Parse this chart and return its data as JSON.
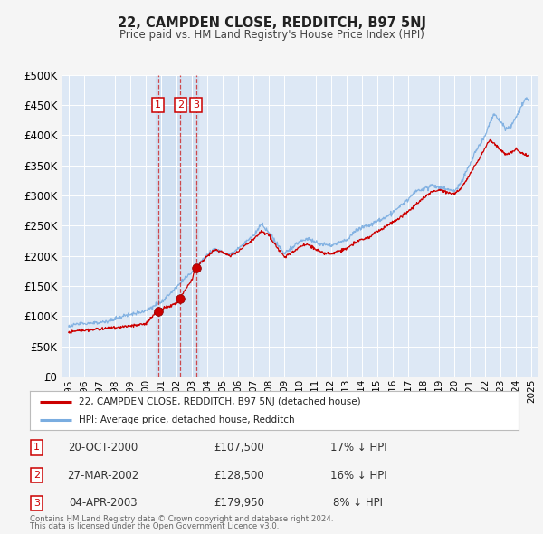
{
  "title": "22, CAMPDEN CLOSE, REDDITCH, B97 5NJ",
  "subtitle": "Price paid vs. HM Land Registry's House Price Index (HPI)",
  "legend_line1": "22, CAMPDEN CLOSE, REDDITCH, B97 5NJ (detached house)",
  "legend_line2": "HPI: Average price, detached house, Redditch",
  "footnote1": "Contains HM Land Registry data © Crown copyright and database right 2024.",
  "footnote2": "This data is licensed under the Open Government Licence v3.0.",
  "transactions": [
    {
      "num": 1,
      "date": "20-OCT-2000",
      "date_val": 2000.8,
      "price": 107500,
      "label": "17% ↓ HPI"
    },
    {
      "num": 2,
      "date": "27-MAR-2002",
      "date_val": 2002.24,
      "price": 128500,
      "label": "16% ↓ HPI"
    },
    {
      "num": 3,
      "date": "04-APR-2003",
      "date_val": 2003.26,
      "price": 179950,
      "label": "8% ↓ HPI"
    }
  ],
  "red_line_color": "#cc0000",
  "blue_line_color": "#7aade0",
  "dashed_line_color": "#cc2222",
  "fig_bg_color": "#f5f5f5",
  "plot_bg_color": "#dde8f5",
  "grid_color": "#ffffff",
  "highlight_bg_color": "#ccddf0",
  "ylim": [
    0,
    500000
  ],
  "yticks": [
    0,
    50000,
    100000,
    150000,
    200000,
    250000,
    300000,
    350000,
    400000,
    450000,
    500000
  ],
  "xlim_start": 1994.6,
  "xlim_end": 2025.4,
  "xticks": [
    1995,
    1996,
    1997,
    1998,
    1999,
    2000,
    2001,
    2002,
    2003,
    2004,
    2005,
    2006,
    2007,
    2008,
    2009,
    2010,
    2011,
    2012,
    2013,
    2014,
    2015,
    2016,
    2017,
    2018,
    2019,
    2020,
    2021,
    2022,
    2023,
    2024,
    2025
  ],
  "hpi_anchors": [
    [
      1995.0,
      83000
    ],
    [
      1996.0,
      87000
    ],
    [
      1997.0,
      90000
    ],
    [
      1998.0,
      95000
    ],
    [
      1999.0,
      103000
    ],
    [
      2000.0,
      110000
    ],
    [
      2001.0,
      123000
    ],
    [
      2002.0,
      148000
    ],
    [
      2003.0,
      175000
    ],
    [
      2004.0,
      205000
    ],
    [
      2004.5,
      215000
    ],
    [
      2005.0,
      208000
    ],
    [
      2005.5,
      205000
    ],
    [
      2006.0,
      215000
    ],
    [
      2007.0,
      235000
    ],
    [
      2007.5,
      255000
    ],
    [
      2008.5,
      220000
    ],
    [
      2009.0,
      205000
    ],
    [
      2009.5,
      215000
    ],
    [
      2010.0,
      225000
    ],
    [
      2010.5,
      230000
    ],
    [
      2011.0,
      225000
    ],
    [
      2011.5,
      220000
    ],
    [
      2012.0,
      218000
    ],
    [
      2013.0,
      228000
    ],
    [
      2013.5,
      240000
    ],
    [
      2014.0,
      248000
    ],
    [
      2014.5,
      252000
    ],
    [
      2015.0,
      258000
    ],
    [
      2016.0,
      272000
    ],
    [
      2017.0,
      295000
    ],
    [
      2017.5,
      308000
    ],
    [
      2018.0,
      312000
    ],
    [
      2018.5,
      318000
    ],
    [
      2019.0,
      315000
    ],
    [
      2019.5,
      312000
    ],
    [
      2020.0,
      308000
    ],
    [
      2020.5,
      325000
    ],
    [
      2021.0,
      352000
    ],
    [
      2021.5,
      378000
    ],
    [
      2022.0,
      400000
    ],
    [
      2022.3,
      420000
    ],
    [
      2022.6,
      435000
    ],
    [
      2022.9,
      425000
    ],
    [
      2023.3,
      410000
    ],
    [
      2023.7,
      415000
    ],
    [
      2024.0,
      430000
    ],
    [
      2024.3,
      445000
    ],
    [
      2024.6,
      460000
    ],
    [
      2024.8,
      458000
    ]
  ],
  "red_anchors": [
    [
      1995.0,
      73000
    ],
    [
      1996.0,
      76000
    ],
    [
      1997.0,
      78000
    ],
    [
      1998.0,
      80000
    ],
    [
      1999.0,
      82000
    ],
    [
      2000.0,
      85000
    ],
    [
      2000.8,
      107500
    ],
    [
      2001.0,
      110000
    ],
    [
      2002.0,
      118000
    ],
    [
      2002.24,
      128500
    ],
    [
      2003.0,
      160000
    ],
    [
      2003.26,
      179950
    ],
    [
      2004.0,
      198000
    ],
    [
      2004.5,
      210000
    ],
    [
      2005.0,
      205000
    ],
    [
      2005.5,
      200000
    ],
    [
      2006.0,
      208000
    ],
    [
      2007.0,
      228000
    ],
    [
      2007.5,
      242000
    ],
    [
      2008.0,
      235000
    ],
    [
      2008.5,
      215000
    ],
    [
      2009.0,
      198000
    ],
    [
      2009.5,
      205000
    ],
    [
      2010.0,
      215000
    ],
    [
      2010.5,
      218000
    ],
    [
      2011.0,
      210000
    ],
    [
      2011.5,
      205000
    ],
    [
      2012.0,
      202000
    ],
    [
      2013.0,
      212000
    ],
    [
      2013.5,
      222000
    ],
    [
      2014.0,
      228000
    ],
    [
      2014.5,
      232000
    ],
    [
      2015.0,
      240000
    ],
    [
      2016.0,
      255000
    ],
    [
      2017.0,
      272000
    ],
    [
      2017.5,
      285000
    ],
    [
      2018.0,
      295000
    ],
    [
      2018.5,
      305000
    ],
    [
      2019.0,
      308000
    ],
    [
      2019.5,
      305000
    ],
    [
      2020.0,
      302000
    ],
    [
      2020.5,
      315000
    ],
    [
      2021.0,
      335000
    ],
    [
      2021.5,
      358000
    ],
    [
      2022.0,
      380000
    ],
    [
      2022.3,
      392000
    ],
    [
      2022.6,
      388000
    ],
    [
      2022.9,
      378000
    ],
    [
      2023.3,
      368000
    ],
    [
      2023.7,
      372000
    ],
    [
      2024.0,
      378000
    ],
    [
      2024.3,
      372000
    ],
    [
      2024.6,
      368000
    ],
    [
      2024.8,
      365000
    ]
  ]
}
